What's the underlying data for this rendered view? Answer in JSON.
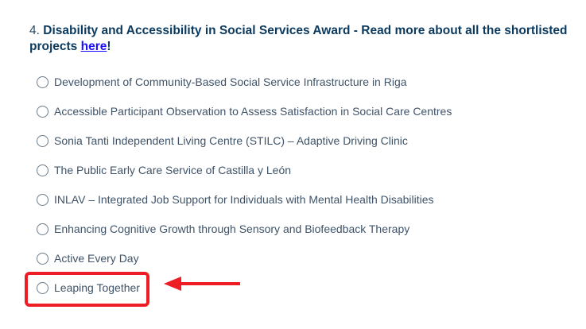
{
  "question": {
    "number": "4.",
    "title": "Disability and Accessibility in Social Services Award - Read more about all the shortlisted projects ",
    "link": "here",
    "suffix": "!"
  },
  "options": [
    {
      "label": "Development of Community-Based Social Service Infrastructure in Riga",
      "selected": false
    },
    {
      "label": "Accessible Participant Observation to Assess Satisfaction in Social Care Centres",
      "selected": false
    },
    {
      "label": "Sonia Tanti Independent Living Centre (STILC) – Adaptive Driving Clinic",
      "selected": false
    },
    {
      "label": "The Public Early Care Service of Castilla y León",
      "selected": false
    },
    {
      "label": "INLAV – Integrated Job Support for Individuals with Mental Health Disabilities",
      "selected": false
    },
    {
      "label": "Enhancing Cognitive Growth through Sensory and Biofeedback Therapy",
      "selected": false
    },
    {
      "label": "Active Every Day",
      "selected": false
    },
    {
      "label": "Leaping Together",
      "selected": false
    }
  ],
  "annotation": {
    "highlight_color": "#ee1c24",
    "highlighted_option": "Leaping Together"
  }
}
